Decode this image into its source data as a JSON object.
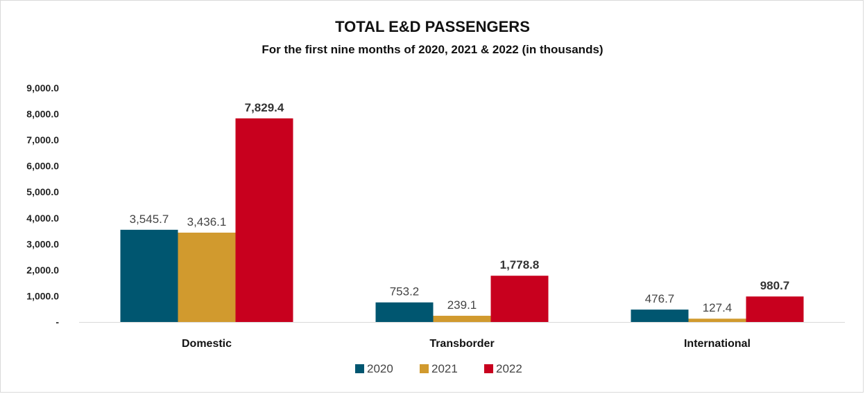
{
  "chart_data": {
    "type": "bar",
    "title": "TOTAL E&D PASSENGERS",
    "subtitle": "For the first nine months of 2020, 2021 & 2022 (in thousands)",
    "categories": [
      "Domestic",
      "Transborder",
      "International"
    ],
    "series": [
      {
        "name": "2020",
        "color": "#005670",
        "values": [
          3545.7,
          753.2,
          476.7
        ],
        "labels": [
          "3,545.7",
          "753.2",
          "476.7"
        ],
        "bold_labels": false
      },
      {
        "name": "2021",
        "color": "#d19a2e",
        "values": [
          3436.1,
          239.1,
          127.4
        ],
        "labels": [
          "3,436.1",
          "239.1",
          "127.4"
        ],
        "bold_labels": false
      },
      {
        "name": "2022",
        "color": "#c8001e",
        "values": [
          7829.4,
          1778.8,
          980.7
        ],
        "labels": [
          "7,829.4",
          "1,778.8",
          "980.7"
        ],
        "bold_labels": true
      }
    ],
    "ylim": [
      0,
      9000
    ],
    "yticks": [
      0,
      1000,
      2000,
      3000,
      4000,
      5000,
      6000,
      7000,
      8000,
      9000
    ],
    "ytick_labels": [
      "-",
      "1,000.0",
      "2,000.0",
      "3,000.0",
      "4,000.0",
      "5,000.0",
      "6,000.0",
      "7,000.0",
      "8,000.0",
      "9,000.0"
    ],
    "legend_position": "bottom",
    "grid": false
  }
}
